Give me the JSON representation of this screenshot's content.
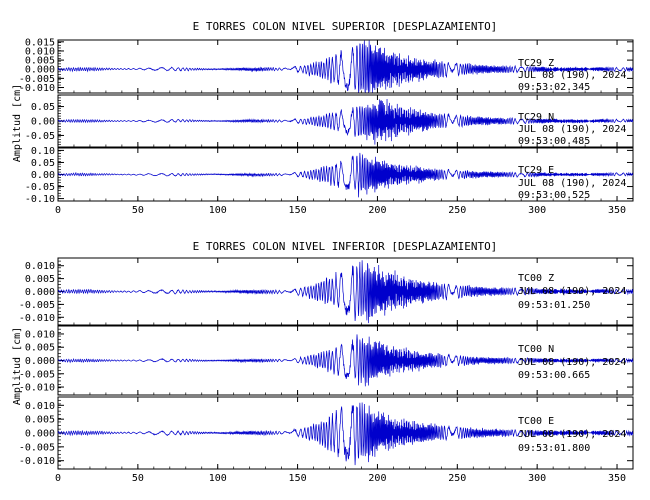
{
  "chart_data": [
    {
      "type": "line",
      "title": "E TORRES COLON NIVEL SUPERIOR [DESPLAZAMIENTO]",
      "ylabel": "Amplitud [cm]",
      "xlabel": "",
      "xlim": [
        0,
        360
      ],
      "xticks": [
        0,
        50,
        100,
        150,
        200,
        250,
        300,
        350
      ],
      "grid": false,
      "line_color": "#0000cc",
      "panels": [
        {
          "station": "TC29",
          "component": "Z",
          "ann_line1": "TC29   Z",
          "ann_line2": "JUL 08 (190), 2024",
          "ann_line3": "09:53:02.345",
          "ylim": [
            -0.013,
            0.016
          ],
          "yticks": [
            "0.015",
            "0.010",
            "0.005",
            "0.000",
            "-0.005",
            "-0.010"
          ],
          "ytick_values": [
            0.015,
            0.01,
            0.005,
            0.0,
            -0.005,
            -0.01
          ],
          "peak_amplitude": 0.016,
          "onset_s": 145,
          "peak_time_s": 192
        },
        {
          "station": "TC29",
          "component": "N",
          "ann_line1": "TC29   N",
          "ann_line2": "JUL 08 (190), 2024",
          "ann_line3": "09:53:00.485",
          "ylim": [
            -0.09,
            0.09
          ],
          "yticks": [
            "0.05",
            "0.00",
            "-0.05"
          ],
          "ytick_values": [
            0.05,
            0.0,
            -0.05
          ],
          "peak_amplitude": 0.08,
          "onset_s": 145,
          "peak_time_s": 200
        },
        {
          "station": "TC29",
          "component": "E",
          "ann_line1": "TC29   E",
          "ann_line2": "JUL 08 (190), 2024",
          "ann_line3": "09:53:00.525",
          "ylim": [
            -0.11,
            0.11
          ],
          "yticks": [
            "0.10",
            "0.05",
            "0.00",
            "-0.05",
            "-0.10"
          ],
          "ytick_values": [
            0.1,
            0.05,
            0.0,
            -0.05,
            -0.1
          ],
          "peak_amplitude": 0.09,
          "onset_s": 145,
          "peak_time_s": 190
        }
      ]
    },
    {
      "type": "line",
      "title": "E TORRES COLON NIVEL INFERIOR [DESPLAZAMIENTO]",
      "ylabel": "Amplitud [cm]",
      "xlabel": "",
      "xlim": [
        0,
        360
      ],
      "xticks": [
        0,
        50,
        100,
        150,
        200,
        250,
        300,
        350
      ],
      "grid": false,
      "line_color": "#0000cc",
      "panels": [
        {
          "station": "TC00",
          "component": "Z",
          "ann_line1": "TC00   Z",
          "ann_line2": "JUL 08 (190), 2024",
          "ann_line3": "09:53:01.250",
          "ylim": [
            -0.013,
            0.013
          ],
          "yticks": [
            "0.010",
            "0.005",
            "0.000",
            "-0.005",
            "-0.010"
          ],
          "ytick_values": [
            0.01,
            0.005,
            0.0,
            -0.005,
            -0.01
          ],
          "peak_amplitude": 0.0125,
          "onset_s": 145,
          "peak_time_s": 190
        },
        {
          "station": "TC00",
          "component": "N",
          "ann_line1": "TC00   N",
          "ann_line2": "JUL 08 (190), 2024",
          "ann_line3": "09:53:00.665",
          "ylim": [
            -0.013,
            0.013
          ],
          "yticks": [
            "0.010",
            "0.005",
            "0.000",
            "-0.005",
            "-0.010"
          ],
          "ytick_values": [
            0.01,
            0.005,
            0.0,
            -0.005,
            -0.01
          ],
          "peak_amplitude": 0.0095,
          "onset_s": 145,
          "peak_time_s": 190
        },
        {
          "station": "TC00",
          "component": "E",
          "ann_line1": "TC00   E",
          "ann_line2": "JUL 08 (190), 2024",
          "ann_line3": "09:53:01.800",
          "ylim": [
            -0.013,
            0.013
          ],
          "yticks": [
            "0.010",
            "0.005",
            "0.000",
            "-0.005",
            "-0.010"
          ],
          "ytick_values": [
            0.01,
            0.005,
            0.0,
            -0.005,
            -0.01
          ],
          "peak_amplitude": 0.012,
          "onset_s": 145,
          "peak_time_s": 185
        }
      ]
    }
  ]
}
